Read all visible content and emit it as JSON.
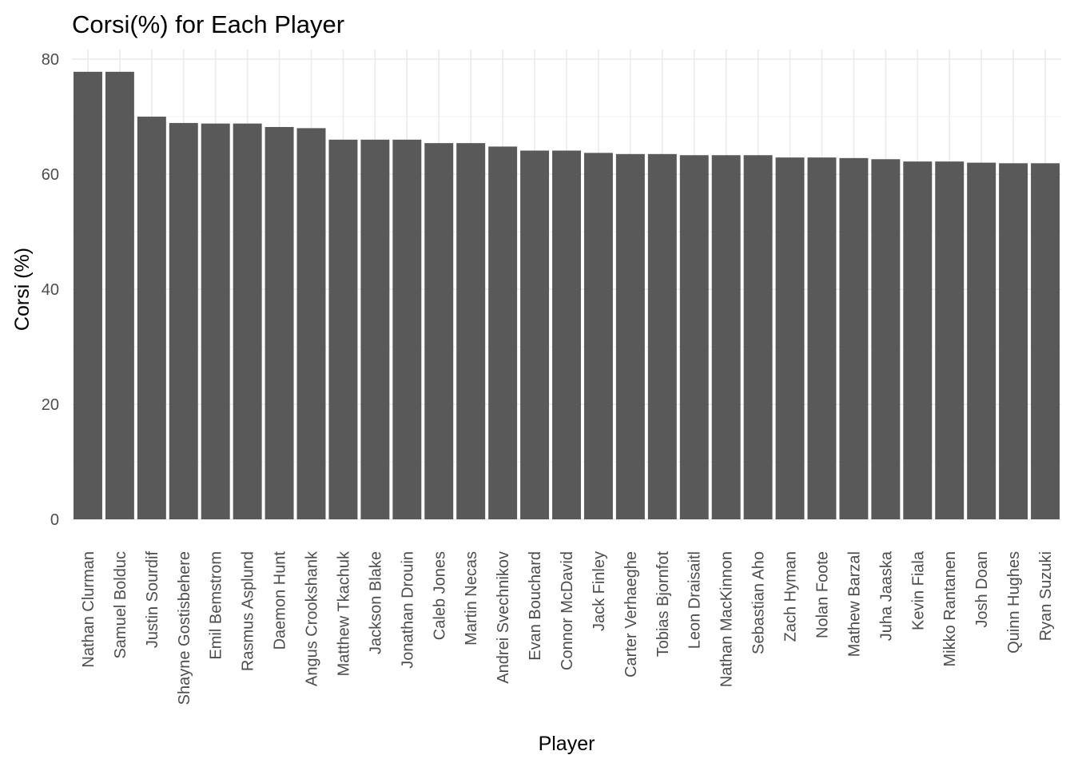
{
  "chart_data": {
    "type": "bar",
    "title": "Corsi(%) for Each Player",
    "xlabel": "Player",
    "ylabel": "Corsi (%)",
    "ylim": [
      0,
      80
    ],
    "y_ticks": [
      0,
      20,
      40,
      60,
      80
    ],
    "grid": true,
    "bar_color": "#595959",
    "categories": [
      "Nathan Clurman",
      "Samuel Bolduc",
      "Justin Sourdif",
      "Shayne Gostisbehere",
      "Emil Bemstrom",
      "Rasmus Asplund",
      "Daemon Hunt",
      "Angus Crookshank",
      "Matthew Tkachuk",
      "Jackson Blake",
      "Jonathan Drouin",
      "Caleb Jones",
      "Martin Necas",
      "Andrei Svechnikov",
      "Evan Bouchard",
      "Connor McDavid",
      "Jack Finley",
      "Carter Verhaeghe",
      "Tobias Bjornfot",
      "Leon Draisaitl",
      "Nathan MacKinnon",
      "Sebastian Aho",
      "Zach Hyman",
      "Nolan Foote",
      "Mathew Barzal",
      "Juha Jaaska",
      "Kevin Fiala",
      "Mikko Rantanen",
      "Josh Doan",
      "Quinn Hughes",
      "Ryan Suzuki"
    ],
    "values": [
      77.8,
      77.8,
      70.0,
      68.9,
      68.8,
      68.8,
      68.2,
      68.0,
      66.0,
      66.0,
      66.0,
      65.4,
      65.4,
      64.8,
      64.1,
      64.1,
      63.7,
      63.5,
      63.5,
      63.3,
      63.3,
      63.3,
      62.9,
      62.9,
      62.8,
      62.6,
      62.2,
      62.2,
      62.0,
      61.9,
      61.9
    ]
  }
}
